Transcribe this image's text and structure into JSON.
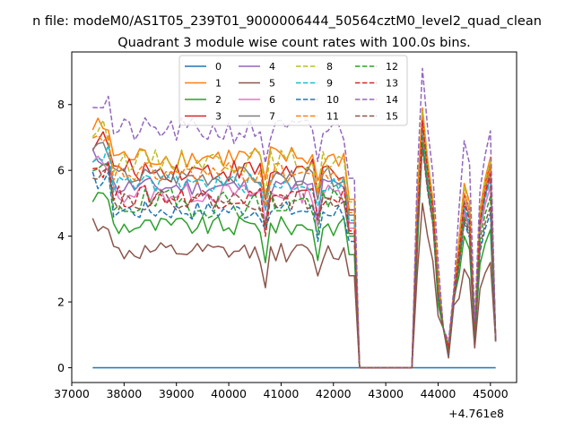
{
  "chart_data": {
    "type": "line",
    "suptitle": "n file: modeM0/AS1T05_239T01_9000006444_50564cztM0_level2_quad_clean",
    "title": "Quadrant 3 module wise count rates with 100.0s bins.",
    "xlabel": "",
    "ylabel": "",
    "x_offset_label": "+4.761e8",
    "xlim": [
      37000,
      45500
    ],
    "ylim": [
      -0.45,
      9.6
    ],
    "x_ticks": [
      37000,
      38000,
      39000,
      40000,
      41000,
      42000,
      43000,
      44000,
      45000
    ],
    "x_tick_labels": [
      "37000",
      "38000",
      "39000",
      "40000",
      "41000",
      "42000",
      "43000",
      "44000",
      "45000"
    ],
    "y_ticks": [
      0,
      2,
      4,
      6,
      8
    ],
    "y_tick_labels": [
      "0",
      "2",
      "4",
      "6",
      "8"
    ],
    "x_range": {
      "start": 37400,
      "end": 45100,
      "step": 100
    },
    "gap": {
      "from": 42500,
      "to": 43500
    },
    "legend": {
      "location": "upper-center",
      "ncol": 4
    },
    "series": [
      {
        "name": "0",
        "color": "#1f77b4",
        "dashed": false,
        "base": 0.0,
        "jitter": 0.0,
        "flare": [
          0,
          0,
          0,
          0,
          0
        ]
      },
      {
        "name": "1",
        "color": "#ff7f0e",
        "dashed": false,
        "base": 6.4,
        "jitter": 0.35,
        "flare": [
          7.9,
          0.7,
          5.6,
          1.2,
          6.4
        ]
      },
      {
        "name": "2",
        "color": "#2ca02c",
        "dashed": false,
        "base": 4.3,
        "jitter": 0.3,
        "flare": [
          7.0,
          0.5,
          4.0,
          0.9,
          4.2
        ]
      },
      {
        "name": "3",
        "color": "#d62728",
        "dashed": false,
        "base": 6.0,
        "jitter": 0.35,
        "flare": [
          7.6,
          0.6,
          5.3,
          1.1,
          6.2
        ]
      },
      {
        "name": "4",
        "color": "#9467bd",
        "dashed": false,
        "base": 5.5,
        "jitter": 0.3,
        "flare": [
          7.3,
          0.5,
          4.8,
          1.0,
          5.8
        ]
      },
      {
        "name": "5",
        "color": "#8c564b",
        "dashed": false,
        "base": 3.5,
        "jitter": 0.3,
        "flare": [
          5.0,
          0.3,
          3.0,
          0.6,
          3.2
        ]
      },
      {
        "name": "6",
        "color": "#e377c2",
        "dashed": false,
        "base": 5.3,
        "jitter": 0.3,
        "flare": [
          7.1,
          0.5,
          4.7,
          1.0,
          5.5
        ]
      },
      {
        "name": "7",
        "color": "#7f7f7f",
        "dashed": false,
        "base": 5.8,
        "jitter": 0.3,
        "flare": [
          7.4,
          0.6,
          5.1,
          1.1,
          6.0
        ]
      },
      {
        "name": "8",
        "color": "#bcbd22",
        "dashed": true,
        "base": 6.3,
        "jitter": 0.35,
        "flare": [
          7.8,
          0.6,
          5.5,
          1.2,
          6.3
        ]
      },
      {
        "name": "9",
        "color": "#17becf",
        "dashed": true,
        "base": 5.6,
        "jitter": 0.3,
        "flare": [
          7.2,
          0.5,
          4.9,
          1.0,
          5.7
        ]
      },
      {
        "name": "10",
        "color": "#1f77b4",
        "dashed": true,
        "base": 4.8,
        "jitter": 0.3,
        "flare": [
          6.8,
          0.4,
          4.4,
          0.9,
          4.7
        ]
      },
      {
        "name": "11",
        "color": "#ff7f0e",
        "dashed": true,
        "base": 5.9,
        "jitter": 0.35,
        "flare": [
          7.6,
          0.6,
          5.3,
          1.1,
          6.1
        ]
      },
      {
        "name": "12",
        "color": "#2ca02c",
        "dashed": true,
        "base": 5.0,
        "jitter": 0.45,
        "flare": [
          7.0,
          0.5,
          4.6,
          1.0,
          5.2
        ]
      },
      {
        "name": "13",
        "color": "#d62728",
        "dashed": true,
        "base": 5.2,
        "jitter": 0.35,
        "flare": [
          7.5,
          0.6,
          5.0,
          1.1,
          5.9
        ]
      },
      {
        "name": "14",
        "color": "#9467bd",
        "dashed": true,
        "base": 7.2,
        "jitter": 0.4,
        "flare": [
          9.1,
          0.8,
          6.9,
          1.4,
          7.2
        ]
      },
      {
        "name": "15",
        "color": "#8c564b",
        "dashed": true,
        "base": 5.1,
        "jitter": 0.3,
        "flare": [
          6.7,
          0.4,
          4.5,
          0.9,
          4.9
        ]
      }
    ]
  }
}
